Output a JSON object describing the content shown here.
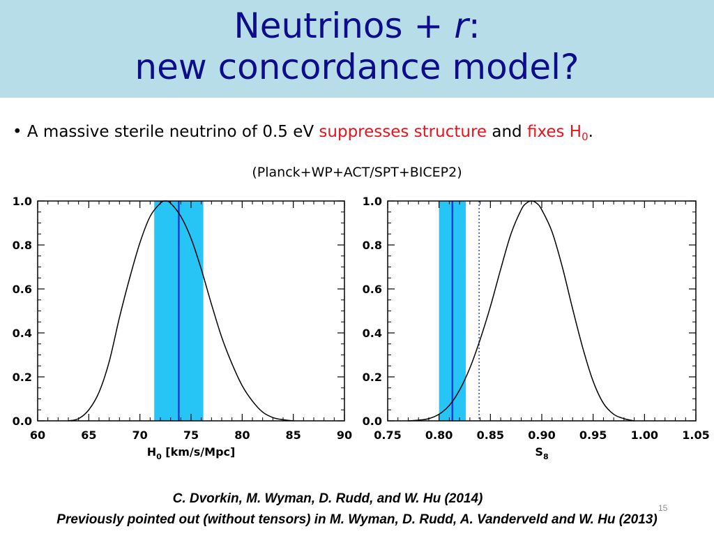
{
  "header": {
    "title_line1_main": "Neutrinos + ",
    "title_line1_italic": "r",
    "title_line1_end": ":",
    "title_line2": "new concordance model?"
  },
  "bullet": {
    "marker": "• ",
    "text1": "A massive sterile neutrino of 0.5 eV ",
    "highlight1": "suppresses structure",
    "text2": " and ",
    "highlight2": "fixes H",
    "highlight2_sub": "0",
    "text3": "."
  },
  "dataset_note": "(Planck+WP+ACT/SPT+BICEP2)",
  "colors": {
    "band": "#27c4f6",
    "measure_line": "#1a3fd8",
    "curve": "#000000",
    "title": "#0d0d8c",
    "highlight": "#e8131b"
  },
  "chart_data": [
    {
      "type": "line",
      "title": "",
      "xlabel": "H",
      "xlabel_sub": "0",
      "xlabel_unit": " [km/s/Mpc]",
      "ylabel": "",
      "xlim": [
        60,
        90
      ],
      "ylim": [
        0,
        1.0
      ],
      "xticks": [
        60,
        65,
        70,
        75,
        80,
        85,
        90
      ],
      "xtick_labels": [
        "60",
        "65",
        "70",
        "75",
        "80",
        "85",
        "90"
      ],
      "yticks": [
        0.0,
        0.2,
        0.4,
        0.6,
        0.8,
        1.0
      ],
      "ytick_labels": [
        "0.0",
        "0.2",
        "0.4",
        "0.6",
        "0.8",
        "1.0"
      ],
      "band": [
        71.4,
        76.2
      ],
      "measurement_line": 73.8,
      "dotted_line": null,
      "x": [
        63.0,
        64.0,
        65.0,
        66.0,
        67.0,
        68.0,
        69.0,
        70.0,
        71.0,
        72.0,
        72.5,
        73.0,
        74.0,
        75.0,
        76.0,
        77.0,
        78.0,
        79.0,
        80.0,
        81.0,
        82.0,
        83.0,
        84.0,
        85.0
      ],
      "y": [
        0.0,
        0.01,
        0.05,
        0.13,
        0.27,
        0.47,
        0.65,
        0.81,
        0.93,
        0.99,
        1.0,
        0.99,
        0.93,
        0.83,
        0.69,
        0.53,
        0.38,
        0.26,
        0.16,
        0.09,
        0.04,
        0.015,
        0.005,
        0.0
      ]
    },
    {
      "type": "line",
      "title": "",
      "xlabel": "S",
      "xlabel_sub": "8",
      "xlabel_unit": "",
      "ylabel": "",
      "xlim": [
        0.75,
        1.05
      ],
      "ylim": [
        0,
        1.0
      ],
      "xticks": [
        0.75,
        0.8,
        0.85,
        0.9,
        0.95,
        1.0,
        1.05
      ],
      "xtick_labels": [
        "0.75",
        "0.80",
        "0.85",
        "0.90",
        "0.95",
        "1.00",
        "1.05"
      ],
      "yticks": [
        0.0,
        0.2,
        0.4,
        0.6,
        0.8,
        1.0
      ],
      "ytick_labels": [
        "0.0",
        "0.2",
        "0.4",
        "0.6",
        "0.8",
        "1.0"
      ],
      "band": [
        0.8,
        0.826
      ],
      "measurement_line": 0.813,
      "dotted_line": 0.839,
      "x": [
        0.77,
        0.78,
        0.79,
        0.8,
        0.81,
        0.82,
        0.83,
        0.84,
        0.85,
        0.86,
        0.87,
        0.88,
        0.885,
        0.89,
        0.895,
        0.9,
        0.91,
        0.92,
        0.93,
        0.94,
        0.95,
        0.96,
        0.97,
        0.98,
        0.99
      ],
      "y": [
        0.0,
        0.003,
        0.01,
        0.03,
        0.07,
        0.14,
        0.24,
        0.37,
        0.52,
        0.69,
        0.85,
        0.96,
        0.99,
        1.0,
        0.99,
        0.96,
        0.86,
        0.7,
        0.51,
        0.33,
        0.18,
        0.08,
        0.03,
        0.01,
        0.0
      ]
    }
  ],
  "citation1": "C. Dvorkin, M. Wyman, D. Rudd, and W. Hu (2014)",
  "citation2": "Previously pointed out (without tensors) in M. Wyman, D. Rudd, A. Vanderveld and W. Hu (2013)",
  "page_number": "15"
}
